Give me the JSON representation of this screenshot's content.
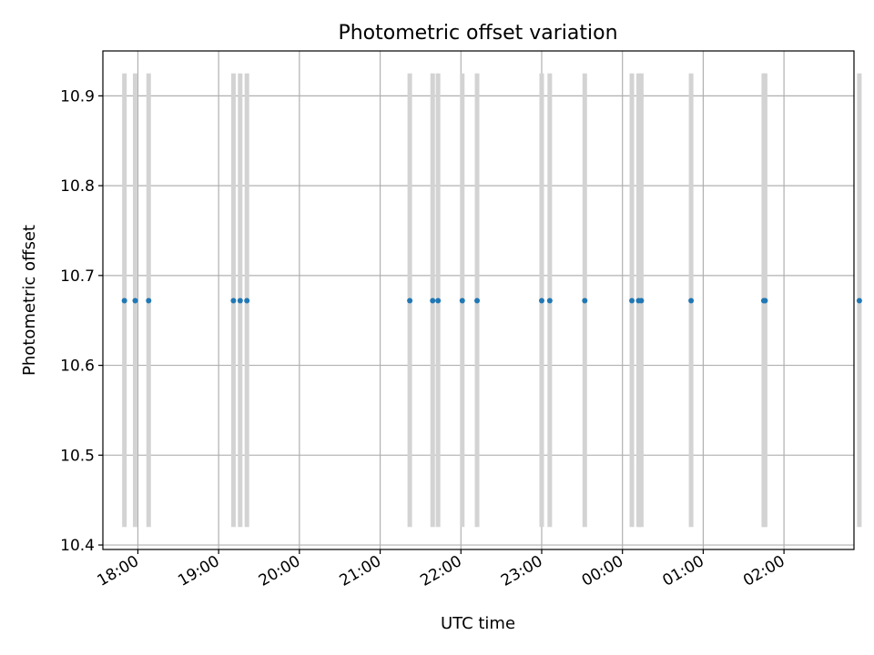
{
  "chart_data": {
    "type": "scatter",
    "title": "Photometric offset variation",
    "xlabel": "UTC time",
    "ylabel": "Photometric offset",
    "x_axis": {
      "min": "17:34",
      "max": "02:52",
      "ticks": [
        "18:00",
        "19:00",
        "20:00",
        "21:00",
        "22:00",
        "23:00",
        "00:00",
        "01:00",
        "02:00"
      ]
    },
    "y_axis": {
      "min": 10.395,
      "max": 10.95,
      "ticks": [
        "10.4",
        "10.5",
        "10.6",
        "10.7",
        "10.8",
        "10.9"
      ]
    },
    "grid": true,
    "colors": {
      "points": "#1f77b4",
      "bands": "#d3d3d3",
      "grid": "#b0b0b0"
    },
    "points": [
      {
        "x": "17:50",
        "y": 10.672
      },
      {
        "x": "17:58",
        "y": 10.672
      },
      {
        "x": "18:08",
        "y": 10.672
      },
      {
        "x": "19:11",
        "y": 10.672
      },
      {
        "x": "19:16",
        "y": 10.672
      },
      {
        "x": "19:21",
        "y": 10.672
      },
      {
        "x": "21:22",
        "y": 10.672
      },
      {
        "x": "21:39",
        "y": 10.672
      },
      {
        "x": "21:43",
        "y": 10.672
      },
      {
        "x": "22:01",
        "y": 10.672
      },
      {
        "x": "22:12",
        "y": 10.672
      },
      {
        "x": "23:00",
        "y": 10.672
      },
      {
        "x": "23:06",
        "y": 10.672
      },
      {
        "x": "23:32",
        "y": 10.672
      },
      {
        "x": "00:07",
        "y": 10.672
      },
      {
        "x": "00:12",
        "y": 10.672
      },
      {
        "x": "00:14",
        "y": 10.672
      },
      {
        "x": "00:51",
        "y": 10.672
      },
      {
        "x": "01:45",
        "y": 10.672
      },
      {
        "x": "01:46",
        "y": 10.672
      },
      {
        "x": "02:56",
        "y": 10.672
      }
    ],
    "bands": [
      {
        "x": "17:50",
        "y_range": [
          10.42,
          10.925
        ]
      },
      {
        "x": "17:58",
        "y_range": [
          10.42,
          10.925
        ]
      },
      {
        "x": "18:08",
        "y_range": [
          10.42,
          10.925
        ]
      },
      {
        "x": "19:11",
        "y_range": [
          10.42,
          10.925
        ]
      },
      {
        "x": "19:16",
        "y_range": [
          10.42,
          10.925
        ]
      },
      {
        "x": "19:21",
        "y_range": [
          10.42,
          10.925
        ]
      },
      {
        "x": "21:22",
        "y_range": [
          10.42,
          10.925
        ]
      },
      {
        "x": "21:39",
        "y_range": [
          10.42,
          10.925
        ]
      },
      {
        "x": "21:43",
        "y_range": [
          10.42,
          10.925
        ]
      },
      {
        "x": "22:01",
        "y_range": [
          10.42,
          10.925
        ]
      },
      {
        "x": "22:12",
        "y_range": [
          10.42,
          10.925
        ]
      },
      {
        "x": "23:00",
        "y_range": [
          10.42,
          10.925
        ]
      },
      {
        "x": "23:06",
        "y_range": [
          10.42,
          10.925
        ]
      },
      {
        "x": "23:32",
        "y_range": [
          10.42,
          10.925
        ]
      },
      {
        "x": "00:07",
        "y_range": [
          10.42,
          10.925
        ]
      },
      {
        "x": "00:12",
        "y_range": [
          10.42,
          10.925
        ]
      },
      {
        "x": "00:14",
        "y_range": [
          10.42,
          10.925
        ]
      },
      {
        "x": "00:51",
        "y_range": [
          10.42,
          10.925
        ]
      },
      {
        "x": "01:45",
        "y_range": [
          10.42,
          10.925
        ]
      },
      {
        "x": "01:46",
        "y_range": [
          10.42,
          10.925
        ]
      },
      {
        "x": "02:56",
        "y_range": [
          10.42,
          10.925
        ]
      }
    ]
  }
}
